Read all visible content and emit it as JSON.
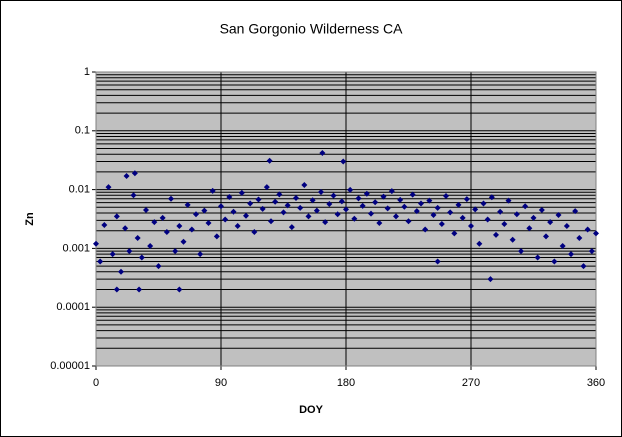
{
  "chart_data": {
    "type": "scatter",
    "title": "San Gorgonio Wilderness CA",
    "xlabel": "DOY",
    "ylabel": "Zn",
    "series": [
      {
        "name": "Zn",
        "color": "#000080",
        "x": [
          0,
          3,
          6,
          9,
          12,
          15,
          18,
          21,
          24,
          27,
          30,
          33,
          36,
          39,
          42,
          45,
          48,
          51,
          54,
          57,
          60,
          63,
          66,
          69,
          72,
          75,
          78,
          81,
          84,
          87,
          90,
          93,
          96,
          99,
          102,
          105,
          108,
          111,
          114,
          117,
          120,
          123,
          126,
          129,
          132,
          135,
          138,
          141,
          144,
          147,
          150,
          153,
          156,
          159,
          162,
          165,
          168,
          171,
          174,
          177,
          180,
          183,
          186,
          189,
          192,
          195,
          198,
          201,
          204,
          207,
          210,
          213,
          216,
          219,
          222,
          225,
          228,
          231,
          234,
          237,
          240,
          243,
          246,
          249,
          252,
          255,
          258,
          261,
          264,
          267,
          270,
          273,
          276,
          279,
          282,
          285,
          288,
          291,
          294,
          297,
          300,
          303,
          306,
          309,
          312,
          315,
          318,
          321,
          324,
          327,
          330,
          333,
          336,
          339,
          342,
          345,
          348,
          351,
          354,
          357,
          360,
          125,
          163,
          178,
          28,
          22,
          60,
          31,
          15,
          284,
          246
        ],
        "values": [
          0.0012,
          0.0006,
          0.0025,
          0.011,
          0.0008,
          0.0035,
          0.0004,
          0.0022,
          0.0009,
          0.008,
          0.0015,
          0.0007,
          0.0045,
          0.0011,
          0.0028,
          0.0005,
          0.0033,
          0.0019,
          0.007,
          0.0009,
          0.0024,
          0.0013,
          0.0055,
          0.0021,
          0.0038,
          0.0008,
          0.0044,
          0.0027,
          0.0095,
          0.0016,
          0.0052,
          0.0031,
          0.0075,
          0.0042,
          0.0024,
          0.0088,
          0.0036,
          0.0058,
          0.0019,
          0.0068,
          0.0047,
          0.011,
          0.0029,
          0.0062,
          0.0083,
          0.0041,
          0.0054,
          0.0023,
          0.0072,
          0.0049,
          0.012,
          0.0035,
          0.0066,
          0.0044,
          0.0091,
          0.0028,
          0.0057,
          0.0079,
          0.0038,
          0.0063,
          0.0046,
          0.0099,
          0.0032,
          0.0071,
          0.0053,
          0.0085,
          0.0039,
          0.0061,
          0.0027,
          0.0076,
          0.0048,
          0.0094,
          0.0035,
          0.0067,
          0.0051,
          0.0029,
          0.0082,
          0.0043,
          0.0058,
          0.0021,
          0.0065,
          0.0037,
          0.0049,
          0.0026,
          0.0078,
          0.0041,
          0.0018,
          0.0055,
          0.0033,
          0.0069,
          0.0024,
          0.0046,
          0.0012,
          0.0058,
          0.0031,
          0.0074,
          0.0017,
          0.0042,
          0.0026,
          0.0065,
          0.0014,
          0.0038,
          0.0009,
          0.0052,
          0.0022,
          0.0033,
          0.0007,
          0.0045,
          0.0016,
          0.0028,
          0.0006,
          0.0037,
          0.0011,
          0.0024,
          0.0008,
          0.0043,
          0.0015,
          0.0005,
          0.0021,
          0.0009,
          0.0018,
          0.031,
          0.042,
          0.03,
          0.019,
          0.017,
          0.0002,
          0.0002,
          0.0002,
          0.0003,
          0.0006
        ]
      }
    ],
    "xlim": [
      0,
      360
    ],
    "xticks": [
      0,
      90,
      180,
      270,
      360
    ],
    "ylim": [
      1e-05,
      1
    ],
    "yticks": [
      1,
      0.1,
      0.01,
      0.001,
      0.0001,
      1e-05
    ],
    "ylog": true,
    "grid": true,
    "minor_grid": true,
    "plot_background": "#c0c0c0"
  }
}
